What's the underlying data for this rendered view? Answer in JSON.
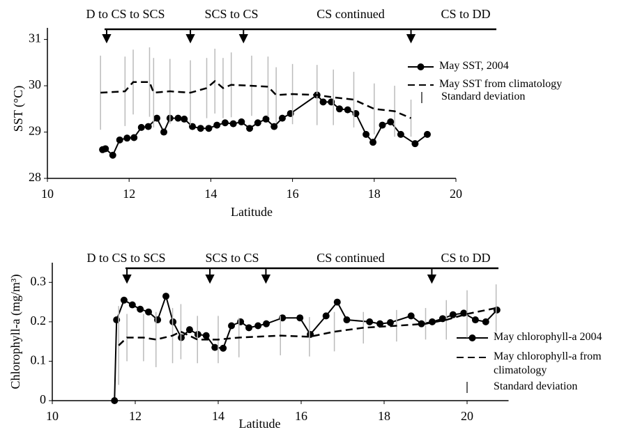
{
  "chart_data": [
    {
      "type": "line",
      "x_label": "Latitude",
      "y_label": "SST (°C)",
      "xlim": [
        10,
        20
      ],
      "ylim": [
        28,
        31.25
      ],
      "xticks": [
        10,
        12,
        14,
        16,
        18,
        20
      ],
      "yticks": [
        28,
        29,
        30,
        31
      ],
      "phase_labels": [
        "D to CS to SCS",
        "SCS to CS",
        "CS continued",
        "CS to DD"
      ],
      "arrow_x": [
        11.45,
        13.5,
        14.8,
        18.9
      ],
      "error_label": "Standard deviation",
      "error_color": "#bbbbbb",
      "series": [
        {
          "name": "May SST, 2004",
          "color": "#000000",
          "style": "marker",
          "x": [
            11.35,
            11.42,
            11.6,
            11.77,
            11.95,
            12.12,
            12.3,
            12.47,
            12.68,
            12.85,
            13.0,
            13.2,
            13.35,
            13.55,
            13.75,
            13.95,
            14.15,
            14.35,
            14.55,
            14.75,
            14.95,
            15.15,
            15.35,
            15.55,
            15.75,
            15.95,
            16.6,
            16.75,
            16.95,
            17.15,
            17.35,
            17.55,
            17.8,
            17.97,
            18.2,
            18.4,
            18.65,
            19.0,
            19.3
          ],
          "values": [
            28.62,
            28.64,
            28.5,
            28.83,
            28.87,
            28.88,
            29.1,
            29.12,
            29.3,
            29.0,
            29.3,
            29.3,
            29.28,
            29.12,
            29.08,
            29.08,
            29.15,
            29.2,
            29.18,
            29.22,
            29.08,
            29.2,
            29.28,
            29.12,
            29.3,
            29.4,
            29.8,
            29.65,
            29.65,
            29.5,
            29.48,
            29.4,
            28.95,
            28.78,
            29.15,
            29.22,
            28.95,
            28.75,
            28.95
          ]
        },
        {
          "name": "May SST from climatology",
          "color": "#000000",
          "style": "dashed",
          "x": [
            11.3,
            11.9,
            12.1,
            12.5,
            12.6,
            13.0,
            13.5,
            13.9,
            14.1,
            14.3,
            14.5,
            15.0,
            15.4,
            15.6,
            16.0,
            16.6,
            17.0,
            17.5,
            18.0,
            18.5,
            18.9
          ],
          "values": [
            29.85,
            29.88,
            30.08,
            30.08,
            29.85,
            29.88,
            29.85,
            29.95,
            30.1,
            29.95,
            30.02,
            30.0,
            29.98,
            29.8,
            29.82,
            29.8,
            29.75,
            29.7,
            29.5,
            29.45,
            29.3
          ],
          "errors": [
            0.8,
            0.75,
            0.7,
            0.75,
            0.75,
            0.7,
            0.7,
            0.65,
            0.7,
            0.65,
            0.7,
            0.65,
            0.65,
            0.6,
            0.65,
            0.65,
            0.6,
            0.6,
            0.55,
            0.55,
            0.4
          ]
        }
      ]
    },
    {
      "type": "line",
      "x_label": "Latitude",
      "y_label": "Chlorophyll-a (mg/m³)",
      "xlim": [
        10,
        21
      ],
      "ylim": [
        0,
        0.35
      ],
      "xticks": [
        10,
        12,
        14,
        16,
        18,
        20
      ],
      "yticks": [
        0,
        0.1,
        0.2,
        0.3
      ],
      "phase_labels": [
        "D to CS to SCS",
        "SCS to CS",
        "CS continued",
        "CS to DD"
      ],
      "arrow_x": [
        11.8,
        13.8,
        15.15,
        19.15
      ],
      "error_label": "Standard deviation",
      "error_color": "#bbbbbb",
      "series": [
        {
          "name": "May chlorophyll-a 2004",
          "color": "#000000",
          "style": "marker",
          "x": [
            11.5,
            11.55,
            11.73,
            11.93,
            12.12,
            12.32,
            12.54,
            12.74,
            12.91,
            13.11,
            13.31,
            13.51,
            13.71,
            13.92,
            14.12,
            14.32,
            14.54,
            14.74,
            14.96,
            15.16,
            15.55,
            15.97,
            16.22,
            16.6,
            16.87,
            17.1,
            17.65,
            17.9,
            18.15,
            18.65,
            18.9,
            19.16,
            19.41,
            19.66,
            19.92,
            20.2,
            20.45,
            20.72
          ],
          "values": [
            0,
            0.205,
            0.255,
            0.243,
            0.232,
            0.225,
            0.205,
            0.265,
            0.2,
            0.16,
            0.18,
            0.168,
            0.165,
            0.135,
            0.133,
            0.19,
            0.2,
            0.185,
            0.19,
            0.195,
            0.21,
            0.21,
            0.168,
            0.215,
            0.25,
            0.205,
            0.2,
            0.195,
            0.198,
            0.215,
            0.195,
            0.2,
            0.208,
            0.218,
            0.222,
            0.205,
            0.2,
            0.23
          ]
        },
        {
          "name": "May chlorophyll-a from climatology",
          "color": "#000000",
          "style": "dashed",
          "x": [
            11.6,
            11.8,
            12.2,
            12.5,
            12.9,
            13.1,
            13.5,
            14.0,
            14.5,
            15.5,
            16.2,
            16.8,
            17.5,
            18.3,
            19.0,
            19.5,
            20.0,
            20.7
          ],
          "values": [
            0.14,
            0.16,
            0.16,
            0.155,
            0.165,
            0.175,
            0.155,
            0.155,
            0.16,
            0.165,
            0.162,
            0.175,
            0.185,
            0.19,
            0.195,
            0.205,
            0.22,
            0.235
          ],
          "errors": [
            0.1,
            0.06,
            0.06,
            0.07,
            0.07,
            0.07,
            0.06,
            0.06,
            0.05,
            0.05,
            0.05,
            0.05,
            0.04,
            0.04,
            0.04,
            0.05,
            0.06,
            0.06
          ]
        }
      ]
    }
  ]
}
